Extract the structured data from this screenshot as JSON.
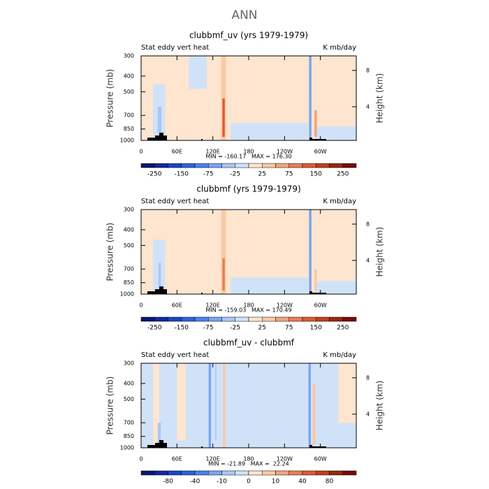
{
  "title": "ANN",
  "chart_data": [
    {
      "type": "contour",
      "title": "clubbmf_uv (yrs 1979-1979)",
      "left_label": "Stat eddy vert heat",
      "right_label": "K mb/day",
      "stats": "MIN = -160.17   MAX = 176.30",
      "ylabel": "Pressure (mb)",
      "y2label": "Height (km)",
      "xlim": [
        0,
        360
      ],
      "xticks": [
        0,
        {
          "value": 60,
          "label": "60E"
        },
        {
          "value": 120,
          "label": "120E"
        },
        180,
        {
          "value": 240,
          "label": "120W"
        },
        {
          "value": 300,
          "label": "60W"
        }
      ],
      "ylim": [
        1000,
        300
      ],
      "ylog": true,
      "yticks": [
        300,
        400,
        500,
        700,
        850,
        1000
      ],
      "y2lim": [
        0.3,
        9.6
      ],
      "y2ticks": [
        4,
        8
      ],
      "levels": [
        -250,
        -200,
        -150,
        -100,
        -75,
        -50,
        -25,
        0,
        25,
        50,
        75,
        100,
        150,
        200,
        250
      ],
      "cbticks": [
        -250,
        -150,
        -75,
        -25,
        25,
        75,
        150,
        250
      ],
      "colors": [
        "#0a1670",
        "#1029a0",
        "#1a45c8",
        "#2b62de",
        "#4a82ee",
        "#78a4f3",
        "#a9c7f6",
        "#d0e2f8",
        "#fde5cf",
        "#fac9a6",
        "#f5a27c",
        "#ee7b54",
        "#e05a31",
        "#c53e1c",
        "#9c2510",
        "#760909"
      ],
      "regions": [
        {
          "lon": [
            0,
            360
          ],
          "p": [
            300,
            1000
          ],
          "value": 10
        },
        {
          "lon": [
            150,
            280
          ],
          "p": [
            780,
            1000
          ],
          "value": -10
        },
        {
          "lon": [
            290,
            360
          ],
          "p": [
            820,
            1000
          ],
          "value": -10
        },
        {
          "lon": [
            80,
            110
          ],
          "p": [
            300,
            480
          ],
          "value": -10
        },
        {
          "lon": [
            20,
            40
          ],
          "p": [
            450,
            1000
          ],
          "value": -10
        },
        {
          "lon": [
            28,
            34
          ],
          "p": [
            620,
            900
          ],
          "value": -40
        },
        {
          "lon": [
            134,
            142
          ],
          "p": [
            300,
            1000
          ],
          "value": 30
        },
        {
          "lon": [
            136,
            140
          ],
          "p": [
            550,
            950
          ],
          "value": 120
        },
        {
          "lon": [
            281,
            285
          ],
          "p": [
            300,
            1000
          ],
          "value": -60
        },
        {
          "lon": [
            290,
            294
          ],
          "p": [
            650,
            950
          ],
          "value": 60
        }
      ]
    },
    {
      "type": "contour",
      "title": "clubbmf (yrs 1979-1979)",
      "left_label": "Stat eddy vert heat",
      "right_label": "K mb/day",
      "stats": "MIN = -159.03   MAX = 170.49",
      "ylabel": "Pressure (mb)",
      "y2label": "Height (km)",
      "xlim": [
        0,
        360
      ],
      "xticks": [
        0,
        {
          "value": 60,
          "label": "60E"
        },
        {
          "value": 120,
          "label": "120E"
        },
        180,
        {
          "value": 240,
          "label": "120W"
        },
        {
          "value": 300,
          "label": "60W"
        }
      ],
      "ylim": [
        1000,
        300
      ],
      "ylog": true,
      "yticks": [
        300,
        400,
        500,
        700,
        850,
        1000
      ],
      "y2lim": [
        0.3,
        9.6
      ],
      "y2ticks": [
        4,
        8
      ],
      "levels": [
        -250,
        -200,
        -150,
        -100,
        -75,
        -50,
        -25,
        0,
        25,
        50,
        75,
        100,
        150,
        200,
        250
      ],
      "cbticks": [
        -250,
        -150,
        -75,
        -25,
        25,
        75,
        150,
        250
      ],
      "colors": [
        "#0a1670",
        "#1029a0",
        "#1a45c8",
        "#2b62de",
        "#4a82ee",
        "#78a4f3",
        "#a9c7f6",
        "#d0e2f8",
        "#fde5cf",
        "#fac9a6",
        "#f5a27c",
        "#ee7b54",
        "#e05a31",
        "#c53e1c",
        "#9c2510",
        "#760909"
      ],
      "regions": [
        {
          "lon": [
            0,
            360
          ],
          "p": [
            300,
            1000
          ],
          "value": 10
        },
        {
          "lon": [
            150,
            280
          ],
          "p": [
            790,
            1000
          ],
          "value": -10
        },
        {
          "lon": [
            290,
            360
          ],
          "p": [
            830,
            1000
          ],
          "value": -10
        },
        {
          "lon": [
            20,
            40
          ],
          "p": [
            460,
            1000
          ],
          "value": -10
        },
        {
          "lon": [
            29,
            33
          ],
          "p": [
            640,
            900
          ],
          "value": -40
        },
        {
          "lon": [
            134,
            142
          ],
          "p": [
            300,
            1000
          ],
          "value": 30
        },
        {
          "lon": [
            136,
            140
          ],
          "p": [
            600,
            950
          ],
          "value": 80
        },
        {
          "lon": [
            281,
            285
          ],
          "p": [
            300,
            1000
          ],
          "value": -60
        },
        {
          "lon": [
            290,
            294
          ],
          "p": [
            700,
            950
          ],
          "value": 40
        }
      ]
    },
    {
      "type": "contour",
      "title": "clubbmf_uv - clubbmf",
      "left_label": "Stat eddy vert heat",
      "right_label": "K mb/day",
      "stats": "MIN = -21.89   MAX =  22.24",
      "ylabel": "Pressure (mb)",
      "y2label": "Height (km)",
      "xlim": [
        0,
        360
      ],
      "xticks": [
        0,
        {
          "value": 60,
          "label": "60E"
        },
        {
          "value": 120,
          "label": "120E"
        },
        180,
        {
          "value": 240,
          "label": "120W"
        },
        {
          "value": 300,
          "label": "60W"
        }
      ],
      "ylim": [
        1000,
        300
      ],
      "ylog": true,
      "yticks": [
        300,
        400,
        500,
        700,
        850,
        1000
      ],
      "y2lim": [
        0.3,
        9.6
      ],
      "y2ticks": [
        4,
        8
      ],
      "levels": [
        -100,
        -80,
        -60,
        -40,
        -20,
        -10,
        -5,
        0,
        5,
        10,
        20,
        40,
        60,
        80,
        100
      ],
      "cbticks": [
        -80,
        -40,
        -10,
        0,
        10,
        40,
        80
      ],
      "colors": [
        "#0a1670",
        "#1029a0",
        "#1a45c8",
        "#2b62de",
        "#4a82ee",
        "#78a4f3",
        "#a9c7f6",
        "#d0e2f8",
        "#fde5cf",
        "#fac9a6",
        "#f5a27c",
        "#ee7b54",
        "#e05a31",
        "#c53e1c",
        "#9c2510",
        "#760909"
      ],
      "regions": [
        {
          "lon": [
            0,
            360
          ],
          "p": [
            300,
            1000
          ],
          "value": -3
        },
        {
          "lon": [
            20,
            30
          ],
          "p": [
            300,
            1000
          ],
          "value": 3
        },
        {
          "lon": [
            60,
            75
          ],
          "p": [
            300,
            900
          ],
          "value": 3
        },
        {
          "lon": [
            330,
            360
          ],
          "p": [
            300,
            700
          ],
          "value": 3
        },
        {
          "lon": [
            28,
            33
          ],
          "p": [
            700,
            950
          ],
          "value": -8
        },
        {
          "lon": [
            113,
            117
          ],
          "p": [
            300,
            1000
          ],
          "value": -15
        },
        {
          "lon": [
            124,
            126
          ],
          "p": [
            300,
            900
          ],
          "value": -8
        },
        {
          "lon": [
            137,
            141
          ],
          "p": [
            300,
            1000
          ],
          "value": 7
        },
        {
          "lon": [
            280,
            284
          ],
          "p": [
            300,
            1000
          ],
          "value": -15
        },
        {
          "lon": [
            287,
            292
          ],
          "p": [
            400,
            950
          ],
          "value": 7
        }
      ]
    }
  ]
}
